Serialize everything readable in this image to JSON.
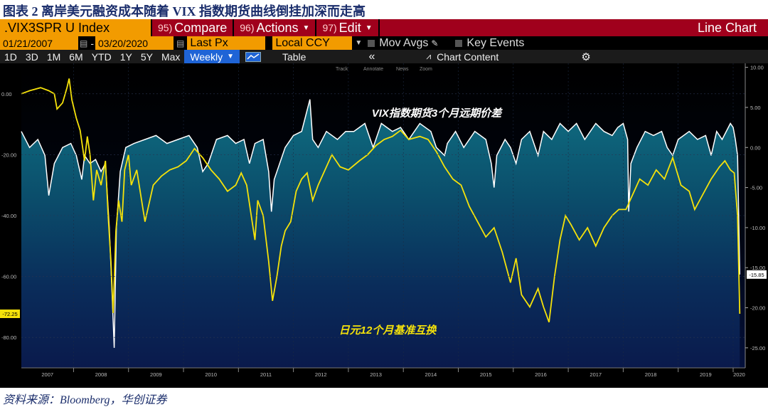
{
  "caption": "图表 2 离岸美元融资成本随着 VIX 指数期货曲线倒挂加深而走高",
  "source": "资料来源：Bloomberg，华创证券",
  "toolbar": {
    "ticker": ".VIX3SPR U Index",
    "compare_num": "95)",
    "compare_label": "Compare",
    "actions_num": "96)",
    "actions_label": "Actions",
    "edit_num": "97)",
    "edit_label": "Edit",
    "chart_type": "Line Chart",
    "start_date": "01/21/2007",
    "end_date": "03/20/2020",
    "price_field": "Last Px",
    "currency": "Local CCY",
    "mov_avgs": "Mov Avgs",
    "key_events": "Key Events",
    "ranges": [
      "1D",
      "3D",
      "1M",
      "6M",
      "YTD",
      "1Y",
      "5Y",
      "Max"
    ],
    "frequency": "Weekly",
    "table_label": "Table",
    "chart_content_label": "Chart Content",
    "mini_tools": [
      "Track",
      "Annotate",
      "News",
      "Zoom"
    ]
  },
  "chart_data": {
    "type": "line",
    "annotations": [
      "VIX指数期货3个月远期价差",
      "日元12个月基准互换"
    ],
    "x_ticks": [
      "2007",
      "2008",
      "2009",
      "2010",
      "2011",
      "2012",
      "2013",
      "2014",
      "2015",
      "2016",
      "2017",
      "2018",
      "2019",
      "2020"
    ],
    "x_range": [
      2007.05,
      2020.22
    ],
    "left_axis": {
      "ticks": [
        "0.00",
        "-20.00",
        "-40.00",
        "-60.00",
        "-80.00"
      ],
      "range": [
        -90,
        10
      ]
    },
    "right_axis": {
      "ticks": [
        "10.00",
        "5.00",
        "0.00",
        "-5.00",
        "-10.00",
        "-15.00",
        "-20.00",
        "-25.00"
      ],
      "range": [
        -27.5,
        10.5
      ]
    },
    "series": [
      {
        "name": "日元12个月基准互换",
        "axis": "left",
        "color": "#f5e20a",
        "last_value_label": "-72.25",
        "points": [
          [
            2007.05,
            0
          ],
          [
            2007.2,
            1
          ],
          [
            2007.4,
            2
          ],
          [
            2007.55,
            1
          ],
          [
            2007.65,
            0
          ],
          [
            2007.7,
            -5
          ],
          [
            2007.8,
            -3
          ],
          [
            2007.88,
            2
          ],
          [
            2007.92,
            5
          ],
          [
            2007.97,
            -2
          ],
          [
            2008.05,
            -8
          ],
          [
            2008.12,
            -12
          ],
          [
            2008.2,
            -22
          ],
          [
            2008.25,
            -14
          ],
          [
            2008.3,
            -20
          ],
          [
            2008.36,
            -35
          ],
          [
            2008.42,
            -25
          ],
          [
            2008.5,
            -30
          ],
          [
            2008.58,
            -22
          ],
          [
            2008.63,
            -40
          ],
          [
            2008.68,
            -55
          ],
          [
            2008.72,
            -72
          ],
          [
            2008.77,
            -45
          ],
          [
            2008.82,
            -35
          ],
          [
            2008.88,
            -42
          ],
          [
            2008.93,
            -25
          ],
          [
            2009.0,
            -20
          ],
          [
            2009.05,
            -30
          ],
          [
            2009.15,
            -25
          ],
          [
            2009.3,
            -42
          ],
          [
            2009.45,
            -30
          ],
          [
            2009.6,
            -27
          ],
          [
            2009.75,
            -25
          ],
          [
            2009.9,
            -24
          ],
          [
            2010.05,
            -22
          ],
          [
            2010.2,
            -18
          ],
          [
            2010.35,
            -21
          ],
          [
            2010.5,
            -25
          ],
          [
            2010.65,
            -28
          ],
          [
            2010.8,
            -32
          ],
          [
            2010.95,
            -30
          ],
          [
            2011.05,
            -26
          ],
          [
            2011.15,
            -30
          ],
          [
            2011.25,
            -42
          ],
          [
            2011.3,
            -48
          ],
          [
            2011.35,
            -35
          ],
          [
            2011.45,
            -40
          ],
          [
            2011.55,
            -55
          ],
          [
            2011.62,
            -68
          ],
          [
            2011.7,
            -60
          ],
          [
            2011.78,
            -50
          ],
          [
            2011.85,
            -45
          ],
          [
            2011.95,
            -42
          ],
          [
            2012.05,
            -32
          ],
          [
            2012.15,
            -28
          ],
          [
            2012.25,
            -26
          ],
          [
            2012.35,
            -35
          ],
          [
            2012.45,
            -30
          ],
          [
            2012.55,
            -26
          ],
          [
            2012.7,
            -20
          ],
          [
            2012.85,
            -24
          ],
          [
            2013.0,
            -25
          ],
          [
            2013.2,
            -22
          ],
          [
            2013.35,
            -20
          ],
          [
            2013.5,
            -17
          ],
          [
            2013.65,
            -15
          ],
          [
            2013.8,
            -14
          ],
          [
            2013.95,
            -12
          ],
          [
            2014.1,
            -15
          ],
          [
            2014.3,
            -14
          ],
          [
            2014.45,
            -15
          ],
          [
            2014.6,
            -19
          ],
          [
            2014.75,
            -24
          ],
          [
            2014.9,
            -28
          ],
          [
            2015.05,
            -30
          ],
          [
            2015.2,
            -37
          ],
          [
            2015.35,
            -42
          ],
          [
            2015.5,
            -47
          ],
          [
            2015.65,
            -44
          ],
          [
            2015.8,
            -52
          ],
          [
            2015.95,
            -62
          ],
          [
            2016.05,
            -54
          ],
          [
            2016.15,
            -66
          ],
          [
            2016.3,
            -70
          ],
          [
            2016.45,
            -64
          ],
          [
            2016.55,
            -70
          ],
          [
            2016.65,
            -75
          ],
          [
            2016.75,
            -60
          ],
          [
            2016.85,
            -48
          ],
          [
            2016.95,
            -40
          ],
          [
            2017.05,
            -43
          ],
          [
            2017.2,
            -48
          ],
          [
            2017.35,
            -44
          ],
          [
            2017.5,
            -50
          ],
          [
            2017.65,
            -44
          ],
          [
            2017.8,
            -40
          ],
          [
            2017.92,
            -38
          ],
          [
            2018.05,
            -38
          ],
          [
            2018.15,
            -34
          ],
          [
            2018.3,
            -28
          ],
          [
            2018.45,
            -30
          ],
          [
            2018.6,
            -25
          ],
          [
            2018.75,
            -28
          ],
          [
            2018.9,
            -21
          ],
          [
            2019.05,
            -30
          ],
          [
            2019.2,
            -32
          ],
          [
            2019.3,
            -38
          ],
          [
            2019.45,
            -33
          ],
          [
            2019.6,
            -28
          ],
          [
            2019.75,
            -24
          ],
          [
            2019.85,
            -22
          ],
          [
            2019.95,
            -25
          ],
          [
            2020.02,
            -26
          ],
          [
            2020.08,
            -40
          ],
          [
            2020.12,
            -72.25
          ]
        ]
      },
      {
        "name": "VIX指数期货3个月远期价差",
        "axis": "right",
        "color": "#ffffff",
        "last_value_label": "-15.85",
        "points": [
          [
            2007.05,
            2
          ],
          [
            2007.2,
            0
          ],
          [
            2007.35,
            1
          ],
          [
            2007.48,
            -1
          ],
          [
            2007.55,
            -6
          ],
          [
            2007.65,
            -2
          ],
          [
            2007.8,
            0
          ],
          [
            2007.95,
            0.5
          ],
          [
            2008.05,
            -1
          ],
          [
            2008.15,
            -4
          ],
          [
            2008.2,
            -1
          ],
          [
            2008.3,
            -2
          ],
          [
            2008.4,
            -1.5
          ],
          [
            2008.5,
            -3
          ],
          [
            2008.58,
            -2
          ],
          [
            2008.65,
            -10
          ],
          [
            2008.7,
            -18
          ],
          [
            2008.74,
            -25
          ],
          [
            2008.78,
            -10
          ],
          [
            2008.85,
            -3
          ],
          [
            2008.95,
            0
          ],
          [
            2009.1,
            0.5
          ],
          [
            2009.3,
            1
          ],
          [
            2009.5,
            1.5
          ],
          [
            2009.7,
            0.5
          ],
          [
            2009.9,
            1
          ],
          [
            2010.1,
            1.5
          ],
          [
            2010.25,
            0
          ],
          [
            2010.35,
            -3
          ],
          [
            2010.45,
            -2
          ],
          [
            2010.6,
            1
          ],
          [
            2010.8,
            1.5
          ],
          [
            2010.95,
            0.5
          ],
          [
            2011.1,
            1
          ],
          [
            2011.2,
            -2
          ],
          [
            2011.3,
            0.5
          ],
          [
            2011.45,
            1
          ],
          [
            2011.55,
            -3
          ],
          [
            2011.6,
            -8
          ],
          [
            2011.65,
            -4
          ],
          [
            2011.75,
            -2
          ],
          [
            2011.85,
            0
          ],
          [
            2012.0,
            1.5
          ],
          [
            2012.15,
            2
          ],
          [
            2012.3,
            6
          ],
          [
            2012.35,
            1
          ],
          [
            2012.45,
            0
          ],
          [
            2012.6,
            2
          ],
          [
            2012.8,
            1
          ],
          [
            2012.95,
            2
          ],
          [
            2013.1,
            2
          ],
          [
            2013.3,
            3
          ],
          [
            2013.45,
            0
          ],
          [
            2013.6,
            3
          ],
          [
            2013.8,
            2
          ],
          [
            2013.95,
            2.5
          ],
          [
            2014.1,
            1
          ],
          [
            2014.3,
            3
          ],
          [
            2014.5,
            2
          ],
          [
            2014.6,
            0
          ],
          [
            2014.75,
            -1
          ],
          [
            2014.8,
            0.5
          ],
          [
            2014.95,
            2
          ],
          [
            2015.1,
            0
          ],
          [
            2015.3,
            2
          ],
          [
            2015.5,
            1
          ],
          [
            2015.6,
            -2
          ],
          [
            2015.65,
            -5
          ],
          [
            2015.7,
            -1
          ],
          [
            2015.85,
            1
          ],
          [
            2015.95,
            0
          ],
          [
            2016.05,
            -2
          ],
          [
            2016.15,
            1
          ],
          [
            2016.3,
            2
          ],
          [
            2016.45,
            -1
          ],
          [
            2016.55,
            2
          ],
          [
            2016.7,
            1
          ],
          [
            2016.85,
            3
          ],
          [
            2017.0,
            2
          ],
          [
            2017.15,
            3
          ],
          [
            2017.3,
            1
          ],
          [
            2017.5,
            3
          ],
          [
            2017.65,
            2
          ],
          [
            2017.8,
            1.5
          ],
          [
            2017.9,
            2.5
          ],
          [
            2018.0,
            3
          ],
          [
            2018.08,
            1
          ],
          [
            2018.1,
            -8
          ],
          [
            2018.14,
            -2
          ],
          [
            2018.25,
            0
          ],
          [
            2018.4,
            2
          ],
          [
            2018.55,
            1.5
          ],
          [
            2018.7,
            2
          ],
          [
            2018.8,
            0
          ],
          [
            2018.9,
            -1
          ],
          [
            2019.0,
            1
          ],
          [
            2019.2,
            2
          ],
          [
            2019.35,
            1
          ],
          [
            2019.5,
            1.5
          ],
          [
            2019.6,
            -1
          ],
          [
            2019.7,
            2
          ],
          [
            2019.8,
            1
          ],
          [
            2019.95,
            3
          ],
          [
            2020.0,
            2.5
          ],
          [
            2020.04,
            1
          ],
          [
            2020.08,
            -1
          ],
          [
            2020.12,
            -15.85
          ]
        ]
      }
    ]
  }
}
